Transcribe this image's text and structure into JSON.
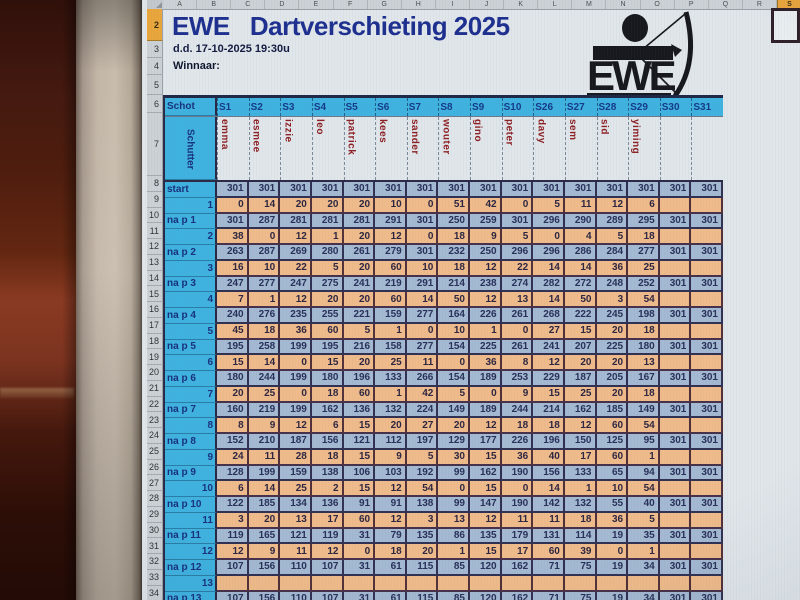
{
  "window": {
    "column_letters": [
      "A",
      "B",
      "C",
      "D",
      "E",
      "F",
      "G",
      "H",
      "I",
      "J",
      "K",
      "L",
      "M",
      "N",
      "O",
      "P",
      "Q",
      "R"
    ],
    "selected_column_letter": "S",
    "selected_row": 2,
    "row_numbers": [
      2,
      3,
      4,
      5,
      6,
      7,
      8,
      9,
      10,
      11,
      12,
      13,
      14,
      15,
      16,
      17,
      18,
      19,
      20,
      21,
      22,
      23,
      24,
      25,
      26,
      27,
      28,
      29,
      30,
      31,
      32,
      33,
      34
    ]
  },
  "header": {
    "title": "EWE   Dartverschieting 2025",
    "date_line": "d.d. 17-10-2025 19:30u",
    "winnaar_label": "Winnaar:",
    "logo_text": "EWE"
  },
  "table": {
    "schot_label": "Schot",
    "schutter_label": "Schutter",
    "player_columns": [
      {
        "code": "S1",
        "name": "emma"
      },
      {
        "code": "S2",
        "name": "esmee"
      },
      {
        "code": "S3",
        "name": "izzie"
      },
      {
        "code": "S4",
        "name": "leo"
      },
      {
        "code": "S5",
        "name": "patrick"
      },
      {
        "code": "S6",
        "name": "kees"
      },
      {
        "code": "S7",
        "name": "sander"
      },
      {
        "code": "S8",
        "name": "wouter"
      },
      {
        "code": "S9",
        "name": "gino"
      },
      {
        "code": "S10",
        "name": "peter"
      },
      {
        "code": "S26",
        "name": "davy"
      },
      {
        "code": "S27",
        "name": "sem"
      },
      {
        "code": "S28",
        "name": "sid"
      },
      {
        "code": "S29",
        "name": "yiming"
      },
      {
        "code": "S30",
        "name": ""
      },
      {
        "code": "S31",
        "name": ""
      }
    ],
    "rows": [
      {
        "excel_row": 8,
        "label": "start",
        "type": "totals",
        "values": [
          301,
          301,
          301,
          301,
          301,
          301,
          301,
          301,
          301,
          301,
          301,
          301,
          301,
          301,
          301,
          301
        ]
      },
      {
        "excel_row": 9,
        "label": "1",
        "type": "throw",
        "values": [
          0,
          14,
          20,
          20,
          20,
          10,
          0,
          51,
          42,
          0,
          5,
          11,
          12,
          6,
          "",
          ""
        ]
      },
      {
        "excel_row": 10,
        "label": "na p 1",
        "type": "totals",
        "values": [
          301,
          287,
          281,
          281,
          281,
          291,
          301,
          250,
          259,
          301,
          296,
          290,
          289,
          295,
          301,
          301
        ]
      },
      {
        "excel_row": 11,
        "label": "2",
        "type": "throw",
        "values": [
          38,
          0,
          12,
          1,
          20,
          12,
          0,
          18,
          9,
          5,
          0,
          4,
          5,
          18,
          "",
          ""
        ]
      },
      {
        "excel_row": 12,
        "label": "na p 2",
        "type": "totals",
        "values": [
          263,
          287,
          269,
          280,
          261,
          279,
          301,
          232,
          250,
          296,
          296,
          286,
          284,
          277,
          301,
          301
        ]
      },
      {
        "excel_row": 13,
        "label": "3",
        "type": "throw",
        "values": [
          16,
          10,
          22,
          5,
          20,
          60,
          10,
          18,
          12,
          22,
          14,
          14,
          36,
          25,
          "",
          ""
        ]
      },
      {
        "excel_row": 14,
        "label": "na p 3",
        "type": "totals",
        "values": [
          247,
          277,
          247,
          275,
          241,
          219,
          291,
          214,
          238,
          274,
          282,
          272,
          248,
          252,
          301,
          301
        ]
      },
      {
        "excel_row": 15,
        "label": "4",
        "type": "throw",
        "values": [
          7,
          1,
          12,
          20,
          20,
          60,
          14,
          50,
          12,
          13,
          14,
          50,
          3,
          54,
          "",
          ""
        ]
      },
      {
        "excel_row": 16,
        "label": "na p 4",
        "type": "totals",
        "values": [
          240,
          276,
          235,
          255,
          221,
          159,
          277,
          164,
          226,
          261,
          268,
          222,
          245,
          198,
          301,
          301
        ]
      },
      {
        "excel_row": 17,
        "label": "5",
        "type": "throw",
        "values": [
          45,
          18,
          36,
          60,
          5,
          1,
          0,
          10,
          1,
          0,
          27,
          15,
          20,
          18,
          "",
          ""
        ]
      },
      {
        "excel_row": 18,
        "label": "na p 5",
        "type": "totals",
        "values": [
          195,
          258,
          199,
          195,
          216,
          158,
          277,
          154,
          225,
          261,
          241,
          207,
          225,
          180,
          301,
          301
        ]
      },
      {
        "excel_row": 19,
        "label": "6",
        "type": "throw",
        "values": [
          15,
          14,
          0,
          15,
          20,
          25,
          11,
          0,
          36,
          8,
          12,
          20,
          20,
          13,
          "",
          ""
        ]
      },
      {
        "excel_row": 20,
        "label": "na p 6",
        "type": "totals",
        "values": [
          180,
          244,
          199,
          180,
          196,
          133,
          266,
          154,
          189,
          253,
          229,
          187,
          205,
          167,
          301,
          301
        ]
      },
      {
        "excel_row": 21,
        "label": "7",
        "type": "throw",
        "values": [
          20,
          25,
          0,
          18,
          60,
          1,
          42,
          5,
          0,
          9,
          15,
          25,
          20,
          18,
          "",
          ""
        ]
      },
      {
        "excel_row": 22,
        "label": "na p 7",
        "type": "totals",
        "values": [
          160,
          219,
          199,
          162,
          136,
          132,
          224,
          149,
          189,
          244,
          214,
          162,
          185,
          149,
          301,
          301
        ]
      },
      {
        "excel_row": 23,
        "label": "8",
        "type": "throw",
        "values": [
          8,
          9,
          12,
          6,
          15,
          20,
          27,
          20,
          12,
          18,
          18,
          12,
          60,
          54,
          "",
          ""
        ]
      },
      {
        "excel_row": 24,
        "label": "na p 8",
        "type": "totals",
        "values": [
          152,
          210,
          187,
          156,
          121,
          112,
          197,
          129,
          177,
          226,
          196,
          150,
          125,
          95,
          301,
          301
        ]
      },
      {
        "excel_row": 25,
        "label": "9",
        "type": "throw",
        "values": [
          24,
          11,
          28,
          18,
          15,
          9,
          5,
          30,
          15,
          36,
          40,
          17,
          60,
          1,
          "",
          ""
        ]
      },
      {
        "excel_row": 26,
        "label": "na p 9",
        "type": "totals",
        "values": [
          128,
          199,
          159,
          138,
          106,
          103,
          192,
          99,
          162,
          190,
          156,
          133,
          65,
          94,
          301,
          301
        ]
      },
      {
        "excel_row": 27,
        "label": "10",
        "type": "throw",
        "values": [
          6,
          14,
          25,
          2,
          15,
          12,
          54,
          0,
          15,
          0,
          14,
          1,
          10,
          54,
          "",
          ""
        ]
      },
      {
        "excel_row": 28,
        "label": "na p 10",
        "type": "totals",
        "values": [
          122,
          185,
          134,
          136,
          91,
          91,
          138,
          99,
          147,
          190,
          142,
          132,
          55,
          40,
          301,
          301
        ]
      },
      {
        "excel_row": 29,
        "label": "11",
        "type": "throw",
        "values": [
          3,
          20,
          13,
          17,
          60,
          12,
          3,
          13,
          12,
          11,
          11,
          18,
          36,
          5,
          "",
          ""
        ]
      },
      {
        "excel_row": 30,
        "label": "na p 11",
        "type": "totals",
        "values": [
          119,
          165,
          121,
          119,
          31,
          79,
          135,
          86,
          135,
          179,
          131,
          114,
          19,
          35,
          301,
          301
        ]
      },
      {
        "excel_row": 31,
        "label": "12",
        "type": "throw",
        "values": [
          12,
          9,
          11,
          12,
          0,
          18,
          20,
          1,
          15,
          17,
          60,
          39,
          0,
          1,
          "",
          ""
        ]
      },
      {
        "excel_row": 32,
        "label": "na p 12",
        "type": "totals",
        "values": [
          107,
          156,
          110,
          107,
          31,
          61,
          115,
          85,
          120,
          162,
          71,
          75,
          19,
          34,
          301,
          301
        ]
      },
      {
        "excel_row": 33,
        "label": "13",
        "type": "throw",
        "values": [
          "",
          "",
          "",
          "",
          "",
          "",
          "",
          "",
          "",
          "",
          "",
          "",
          "",
          "",
          "",
          ""
        ]
      },
      {
        "excel_row": 34,
        "label": "na p 13",
        "type": "totals",
        "values": [
          107,
          156,
          110,
          107,
          31,
          61,
          115,
          85,
          120,
          162,
          71,
          75,
          19,
          34,
          301,
          301
        ]
      }
    ]
  },
  "colors": {
    "title_text": "#1d2f8f",
    "header_cyan": "#3fb2e0",
    "total_cell": "#a4b9d2",
    "throw_cell": "#f0bb8a",
    "name_text": "#8c2024",
    "label_text": "#17317e",
    "gutter_bg": "#ccd1d6",
    "gutter_selected": "#e9a63c",
    "screen_bg": "#e0e6ea"
  }
}
